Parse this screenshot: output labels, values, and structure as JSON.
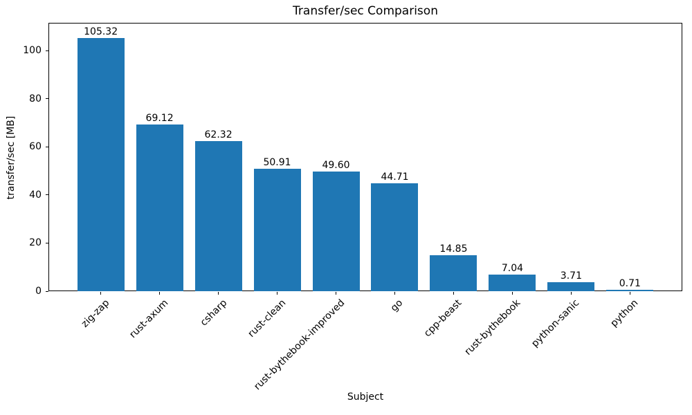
{
  "chart_data": {
    "type": "bar",
    "title": "Transfer/sec Comparison",
    "xlabel": "Subject",
    "ylabel": "transfer/sec [MB]",
    "categories": [
      "zig-zap",
      "rust-axum",
      "csharp",
      "rust-clean",
      "rust-bythebook-improved",
      "go",
      "cpp-beast",
      "rust-bythebook",
      "python-sanic",
      "python"
    ],
    "values": [
      105.32,
      69.12,
      62.32,
      50.91,
      49.6,
      44.71,
      14.85,
      7.04,
      3.71,
      0.71
    ],
    "value_labels": [
      "105.32",
      "69.12",
      "62.32",
      "50.91",
      "49.60",
      "44.71",
      "14.85",
      "7.04",
      "3.71",
      "0.71"
    ],
    "yticks": [
      0,
      20,
      40,
      60,
      80,
      100
    ],
    "ylim": [
      0,
      111.5
    ],
    "grid": false,
    "legend_position": "none",
    "bar_color": "#1f77b4",
    "text_color": "#000000"
  }
}
